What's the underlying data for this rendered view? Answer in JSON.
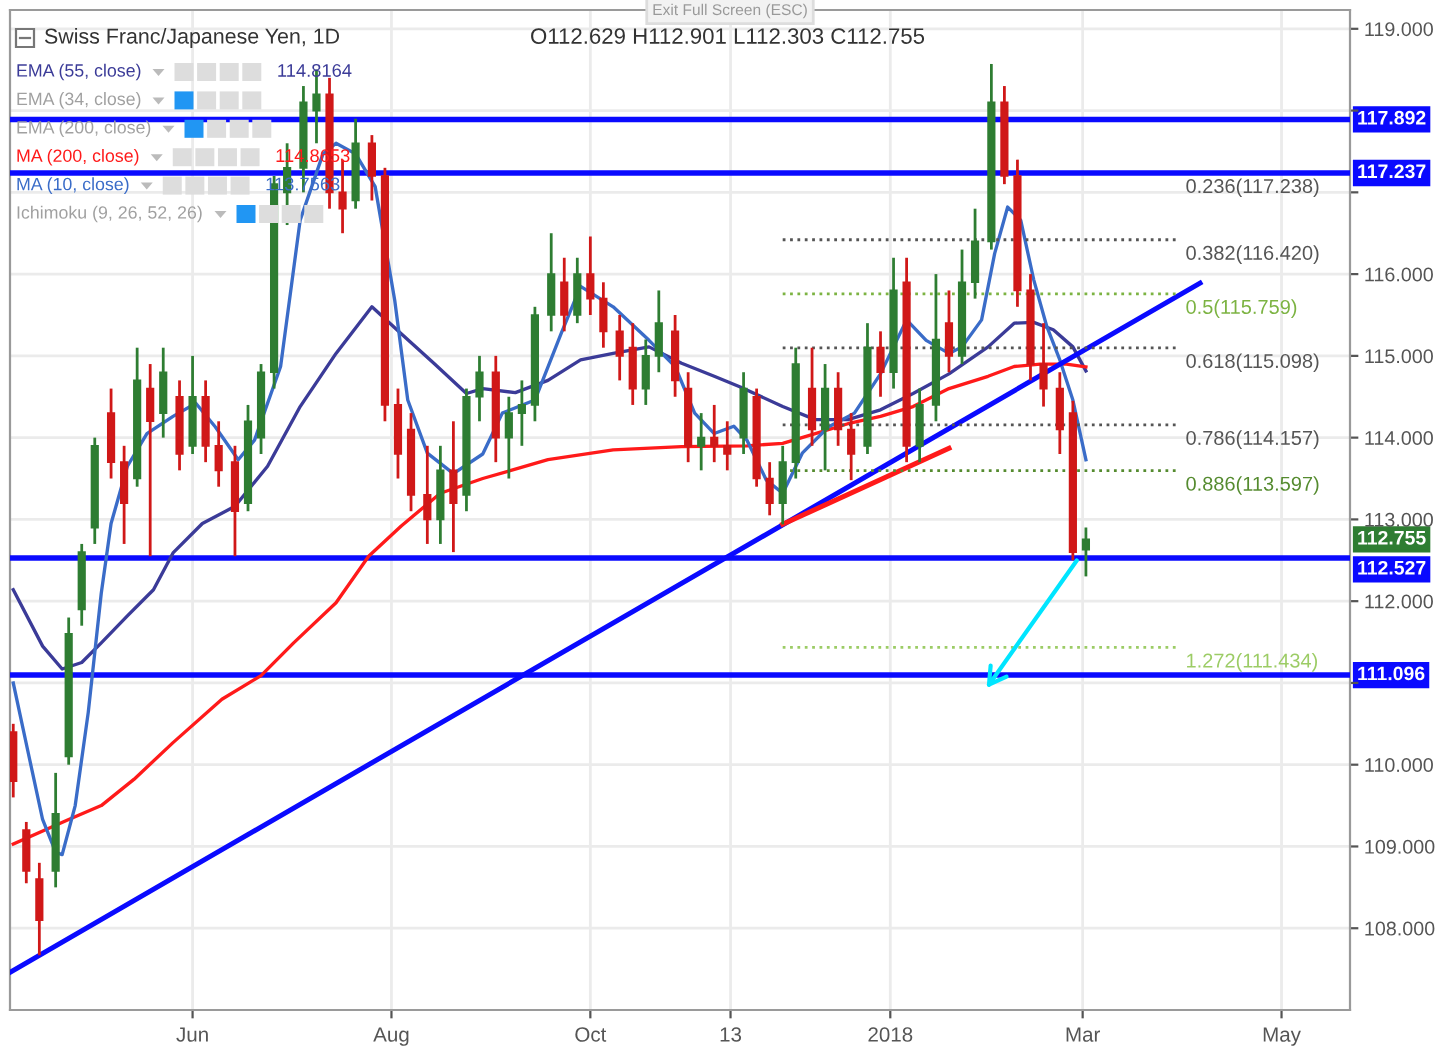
{
  "chart_data": {
    "type": "candlestick",
    "title": "Swiss Franc/Japanese Yen, 1D",
    "x": [
      "2017-04-07",
      "2017-04-11",
      "2017-04-15",
      "2017-04-20",
      "2017-04-24",
      "2017-04-28",
      "2017-05-02",
      "2017-05-07",
      "2017-05-11",
      "2017-05-15",
      "2017-05-19",
      "2017-05-23",
      "2017-05-28",
      "2017-06-01",
      "2017-06-05",
      "2017-06-09",
      "2017-06-14",
      "2017-06-18",
      "2017-06-22",
      "2017-06-26",
      "2017-06-30",
      "2017-07-05",
      "2017-07-09",
      "2017-07-13",
      "2017-07-17",
      "2017-07-21",
      "2017-07-26",
      "2017-07-30",
      "2017-08-03",
      "2017-08-07",
      "2017-08-12",
      "2017-08-16",
      "2017-08-20",
      "2017-08-24",
      "2017-08-28",
      "2017-09-02",
      "2017-09-06",
      "2017-09-10",
      "2017-09-14",
      "2017-09-19",
      "2017-09-23",
      "2017-09-27",
      "2017-10-01",
      "2017-10-05",
      "2017-10-10",
      "2017-10-14",
      "2017-10-18",
      "2017-10-22",
      "2017-10-27",
      "2017-10-31",
      "2017-11-04",
      "2017-11-08",
      "2017-11-12",
      "2017-11-17",
      "2017-11-21",
      "2017-11-25",
      "2017-11-29",
      "2017-12-03",
      "2017-12-08",
      "2017-12-12",
      "2017-12-16",
      "2017-12-20",
      "2017-12-25",
      "2017-12-29",
      "2018-01-02",
      "2018-01-06",
      "2018-01-10",
      "2018-01-15",
      "2018-01-19",
      "2018-01-23",
      "2018-01-27",
      "2018-02-01",
      "2018-02-05",
      "2018-02-09",
      "2018-02-13",
      "2018-02-17",
      "2018-02-22",
      "2018-02-26",
      "2018-03-02"
    ],
    "ohlc": [
      [
        110.4,
        110.5,
        109.6,
        109.8
      ],
      [
        109.2,
        109.3,
        108.55,
        108.7
      ],
      [
        108.6,
        108.8,
        107.67,
        108.1
      ],
      [
        108.7,
        109.9,
        108.5,
        109.4
      ],
      [
        110.1,
        111.8,
        110.0,
        111.6
      ],
      [
        111.9,
        112.7,
        111.7,
        112.6
      ],
      [
        112.9,
        114.0,
        112.7,
        113.9
      ],
      [
        114.3,
        114.6,
        113.5,
        113.7
      ],
      [
        113.7,
        113.9,
        112.7,
        113.2
      ],
      [
        113.5,
        115.1,
        113.4,
        114.7
      ],
      [
        114.6,
        114.9,
        112.55,
        114.2
      ],
      [
        114.3,
        115.1,
        114.0,
        114.8
      ],
      [
        114.5,
        114.7,
        113.6,
        113.8
      ],
      [
        113.9,
        115.0,
        113.8,
        114.5
      ],
      [
        114.5,
        114.7,
        113.7,
        113.9
      ],
      [
        113.9,
        114.2,
        113.4,
        113.6
      ],
      [
        113.7,
        113.9,
        112.55,
        113.1
      ],
      [
        113.2,
        114.4,
        113.1,
        114.2
      ],
      [
        114.0,
        114.9,
        113.8,
        114.8
      ],
      [
        114.8,
        117.2,
        114.6,
        117.1
      ],
      [
        117.0,
        117.6,
        116.6,
        117.3
      ],
      [
        117.3,
        118.3,
        117.0,
        118.1
      ],
      [
        118.0,
        118.5,
        117.6,
        118.2
      ],
      [
        118.2,
        118.4,
        116.8,
        117.0
      ],
      [
        117.0,
        117.4,
        116.5,
        116.8
      ],
      [
        116.9,
        117.9,
        116.8,
        117.6
      ],
      [
        117.6,
        117.7,
        116.9,
        117.2
      ],
      [
        117.2,
        117.3,
        114.2,
        114.4
      ],
      [
        114.4,
        114.6,
        113.5,
        113.8
      ],
      [
        114.1,
        114.3,
        113.1,
        113.3
      ],
      [
        113.3,
        113.9,
        112.7,
        113.0
      ],
      [
        113.0,
        113.9,
        112.7,
        113.6
      ],
      [
        113.6,
        114.2,
        112.6,
        113.2
      ],
      [
        113.3,
        114.6,
        113.1,
        114.5
      ],
      [
        114.5,
        115.0,
        114.2,
        114.8
      ],
      [
        114.8,
        115.0,
        113.7,
        114.0
      ],
      [
        114.0,
        114.5,
        113.5,
        114.3
      ],
      [
        114.3,
        114.7,
        113.9,
        114.4
      ],
      [
        114.4,
        115.6,
        114.2,
        115.5
      ],
      [
        115.5,
        116.5,
        115.3,
        116.0
      ],
      [
        115.9,
        116.2,
        115.3,
        115.5
      ],
      [
        115.5,
        116.2,
        115.4,
        116.0
      ],
      [
        116.0,
        116.46,
        115.5,
        115.7
      ],
      [
        115.7,
        115.9,
        115.1,
        115.3
      ],
      [
        115.3,
        115.5,
        114.7,
        115.0
      ],
      [
        115.1,
        115.4,
        114.4,
        114.6
      ],
      [
        114.6,
        115.2,
        114.4,
        115.0
      ],
      [
        115.0,
        115.8,
        114.8,
        115.4
      ],
      [
        115.3,
        115.5,
        114.5,
        114.7
      ],
      [
        114.6,
        114.8,
        113.7,
        113.9
      ],
      [
        113.9,
        114.3,
        113.6,
        114.0
      ],
      [
        114.0,
        114.4,
        113.7,
        113.9
      ],
      [
        113.9,
        114.2,
        113.6,
        113.8
      ],
      [
        114.0,
        114.8,
        113.8,
        114.6
      ],
      [
        114.5,
        114.6,
        113.4,
        113.5
      ],
      [
        113.5,
        113.7,
        113.05,
        113.2
      ],
      [
        113.2,
        113.9,
        112.94,
        113.7
      ],
      [
        113.7,
        115.1,
        113.5,
        114.9
      ],
      [
        114.6,
        115.1,
        113.9,
        114.1
      ],
      [
        114.1,
        114.9,
        113.6,
        114.6
      ],
      [
        114.6,
        114.8,
        113.9,
        114.1
      ],
      [
        114.1,
        114.3,
        113.48,
        113.8
      ],
      [
        113.9,
        115.4,
        113.8,
        115.1
      ],
      [
        115.1,
        115.3,
        114.5,
        114.8
      ],
      [
        114.8,
        116.2,
        114.6,
        115.8
      ],
      [
        115.9,
        116.2,
        113.7,
        113.9
      ],
      [
        113.9,
        114.6,
        113.7,
        114.4
      ],
      [
        114.4,
        116.0,
        114.2,
        115.2
      ],
      [
        115.4,
        115.8,
        114.8,
        115.0
      ],
      [
        115.0,
        116.3,
        114.9,
        115.9
      ],
      [
        115.9,
        116.8,
        115.7,
        116.4
      ],
      [
        116.4,
        118.57,
        116.3,
        118.1
      ],
      [
        118.1,
        118.3,
        117.1,
        117.2
      ],
      [
        117.2,
        117.4,
        115.6,
        115.8
      ],
      [
        115.8,
        116.0,
        114.7,
        114.9
      ],
      [
        114.9,
        115.4,
        114.38,
        114.6
      ],
      [
        114.6,
        114.8,
        113.8,
        114.1
      ],
      [
        114.3,
        114.45,
        112.5,
        112.6
      ],
      [
        112.629,
        112.901,
        112.303,
        112.755
      ]
    ],
    "colors": [
      "#d01818",
      "#d01818",
      "#d01818",
      "#2e7d32",
      "#2e7d32",
      "#2e7d32",
      "#2e7d32",
      "#d01818",
      "#d01818",
      "#2e7d32",
      "#d01818",
      "#2e7d32",
      "#d01818",
      "#2e7d32",
      "#d01818",
      "#d01818",
      "#d01818",
      "#2e7d32",
      "#2e7d32",
      "#2e7d32",
      "#2e7d32",
      "#2e7d32",
      "#2e7d32",
      "#d01818",
      "#d01818",
      "#2e7d32",
      "#d01818",
      "#d01818",
      "#d01818",
      "#d01818",
      "#d01818",
      "#2e7d32",
      "#d01818",
      "#2e7d32",
      "#2e7d32",
      "#d01818",
      "#2e7d32",
      "#2e7d32",
      "#2e7d32",
      "#2e7d32",
      "#d01818",
      "#2e7d32",
      "#d01818",
      "#d01818",
      "#d01818",
      "#d01818",
      "#2e7d32",
      "#2e7d32",
      "#d01818",
      "#d01818",
      "#2e7d32",
      "#d01818",
      "#d01818",
      "#2e7d32",
      "#d01818",
      "#d01818",
      "#2e7d32",
      "#2e7d32",
      "#d01818",
      "#2e7d32",
      "#d01818",
      "#d01818",
      "#2e7d32",
      "#d01818",
      "#2e7d32",
      "#d01818",
      "#2e7d32",
      "#2e7d32",
      "#d01818",
      "#2e7d32",
      "#2e7d32",
      "#2e7d32",
      "#d01818",
      "#d01818",
      "#d01818",
      "#d01818",
      "#d01818",
      "#d01818",
      "#2e7d32"
    ],
    "series": [
      {
        "name": "EMA (55, close)",
        "type": "line",
        "color": "#3b3b98",
        "x": [
          "2017-04-07",
          "2017-04-16",
          "2017-04-22",
          "2017-04-28",
          "2017-05-04",
          "2017-05-12",
          "2017-05-20",
          "2017-05-26",
          "2017-06-04",
          "2017-06-14",
          "2017-06-24",
          "2017-07-04",
          "2017-07-15",
          "2017-07-26",
          "2017-08-04",
          "2017-08-14",
          "2017-08-24",
          "2017-08-29",
          "2017-09-08",
          "2017-09-18",
          "2017-09-28",
          "2017-10-08",
          "2017-10-19",
          "2017-10-29",
          "2017-11-08",
          "2017-11-16",
          "2017-11-29",
          "2017-12-09",
          "2017-12-19",
          "2017-12-29",
          "2018-01-08",
          "2018-01-19",
          "2018-01-31",
          "2018-02-08",
          "2018-02-14",
          "2018-02-20",
          "2018-02-26",
          "2018-03-02"
        ],
        "values": [
          112.14,
          111.45,
          111.17,
          111.25,
          111.49,
          111.82,
          112.14,
          112.59,
          112.95,
          113.16,
          113.65,
          114.38,
          115.03,
          115.6,
          115.27,
          114.91,
          114.54,
          114.6,
          114.55,
          114.7,
          114.95,
          115.03,
          115.11,
          114.91,
          114.75,
          114.62,
          114.38,
          114.22,
          114.22,
          114.34,
          114.54,
          114.78,
          115.11,
          115.4,
          115.41,
          115.32,
          115.11,
          114.8164
        ]
      },
      {
        "name": "MA (200, close)",
        "type": "line",
        "color": "#ff1a1a",
        "x": [
          "2017-04-07",
          "2017-04-24",
          "2017-05-04",
          "2017-05-14",
          "2017-05-26",
          "2017-06-10",
          "2017-06-22",
          "2017-07-02",
          "2017-07-15",
          "2017-07-25",
          "2017-08-04",
          "2017-08-16",
          "2017-08-29",
          "2017-09-18",
          "2017-10-08",
          "2017-10-29",
          "2017-11-18",
          "2017-11-29",
          "2017-12-09",
          "2017-12-19",
          "2017-12-29",
          "2018-01-08",
          "2018-01-19",
          "2018-01-31",
          "2018-02-08",
          "2018-02-16",
          "2018-02-24",
          "2018-03-02"
        ],
        "values": [
          109.03,
          109.33,
          109.5,
          109.82,
          110.27,
          110.8,
          111.09,
          111.49,
          111.98,
          112.55,
          112.92,
          113.32,
          113.5,
          113.73,
          113.85,
          113.89,
          113.9,
          113.93,
          114.05,
          114.17,
          114.26,
          114.38,
          114.6,
          114.75,
          114.87,
          114.9,
          114.9,
          114.8653
        ]
      },
      {
        "name": "MA (10, close)",
        "type": "line",
        "color": "#3a6cc8",
        "x": [
          "2017-04-07",
          "2017-04-12",
          "2017-04-16",
          "2017-04-20",
          "2017-04-22",
          "2017-04-26",
          "2017-04-30",
          "2017-05-04",
          "2017-05-07",
          "2017-05-12",
          "2017-05-18",
          "2017-05-26",
          "2017-06-02",
          "2017-06-08",
          "2017-06-15",
          "2017-06-20",
          "2017-06-28",
          "2017-07-04",
          "2017-07-11",
          "2017-07-15",
          "2017-07-21",
          "2017-07-27",
          "2017-08-02",
          "2017-08-06",
          "2017-08-12",
          "2017-08-20",
          "2017-08-29",
          "2017-09-04",
          "2017-09-14",
          "2017-09-22",
          "2017-09-28",
          "2017-10-08",
          "2017-10-19",
          "2017-10-27",
          "2017-11-02",
          "2017-11-08",
          "2017-11-14",
          "2017-11-18",
          "2017-11-24",
          "2017-11-29",
          "2017-12-05",
          "2017-12-13",
          "2017-12-21",
          "2017-12-29",
          "2018-01-06",
          "2018-01-12",
          "2018-01-19",
          "2018-01-23",
          "2018-01-29",
          "2018-02-02",
          "2018-02-06",
          "2018-02-10",
          "2018-02-14",
          "2018-02-18",
          "2018-02-22",
          "2018-02-26",
          "2018-03-02"
        ],
        "values": [
          111.0,
          110.07,
          109.33,
          108.93,
          108.9,
          109.5,
          110.64,
          112.1,
          112.95,
          113.65,
          114.05,
          114.26,
          114.42,
          114.13,
          113.73,
          113.97,
          114.87,
          116.66,
          117.47,
          117.6,
          117.47,
          117.07,
          115.68,
          114.46,
          113.81,
          113.56,
          113.8,
          114.3,
          114.46,
          115.27,
          115.85,
          115.6,
          115.19,
          114.87,
          114.3,
          114.05,
          114.14,
          113.97,
          113.48,
          113.32,
          113.81,
          114.13,
          114.3,
          114.78,
          115.44,
          115.19,
          115.03,
          115.11,
          115.44,
          116.25,
          116.82,
          116.66,
          115.93,
          115.36,
          114.95,
          114.46,
          113.73
        ]
      },
      {
        "type": "line",
        "color": "#0a0aff",
        "x": [
          "2017-04-06",
          "2018-04-06"
        ],
        "values": [
          107.46,
          115.89
        ]
      },
      {
        "type": "line",
        "color": "#ff1a1a",
        "x": [
          "2017-11-29",
          "2018-01-19"
        ],
        "values": [
          112.94,
          113.87
        ]
      },
      {
        "type": "line",
        "color": "#555555",
        "line_style": "dotted",
        "x": [
          "2017-11-29",
          "2018-03-30"
        ],
        "values": [
          116.42,
          116.42
        ]
      },
      {
        "type": "line",
        "color": "#7cb342",
        "line_style": "dotted",
        "x": [
          "2017-11-29",
          "2018-03-30"
        ],
        "values": [
          115.759,
          115.759
        ]
      },
      {
        "type": "line",
        "color": "#555555",
        "line_style": "dotted",
        "x": [
          "2017-11-29",
          "2018-03-30"
        ],
        "values": [
          115.098,
          115.098
        ]
      },
      {
        "type": "line",
        "color": "#555555",
        "line_style": "dotted",
        "x": [
          "2017-11-29",
          "2018-03-30"
        ],
        "values": [
          114.157,
          114.157
        ]
      },
      {
        "type": "line",
        "color": "#558b2f",
        "line_style": "dotted",
        "x": [
          "2017-11-29",
          "2018-03-30"
        ],
        "values": [
          113.597,
          113.597
        ]
      },
      {
        "type": "line",
        "color": "#9ccc65",
        "line_style": "dotted",
        "x": [
          "2017-11-29",
          "2018-03-30"
        ],
        "values": [
          111.434,
          111.434
        ]
      }
    ],
    "ref_lines": [
      {
        "axis": "y",
        "value": 117.892,
        "label": "117.892",
        "color": "#0a0aff"
      },
      {
        "axis": "y",
        "value": 117.237,
        "label": "117.237",
        "color": "#0a0aff"
      },
      {
        "axis": "y",
        "value": 112.527,
        "label": "112.527",
        "color": "#0a0aff"
      },
      {
        "axis": "y",
        "value": 111.096,
        "label": "111.096",
        "color": "#0a0aff"
      }
    ],
    "annotations": [
      "O112.629 H112.901 L112.303 C112.755",
      "114.8164",
      "EMA (34, close)",
      "EMA (200, close)",
      "114.8653",
      "113.7563",
      "Ichimoku (9, 26, 52, 26)",
      "Exit Full Screen (ESC)",
      {
        "text": "0.236(117.238)",
        "x": "2018-03-30",
        "y": 117.238
      },
      "112.755",
      {
        "text": "0.382(116.420)",
        "x": "2018-03-30",
        "y": 116.42
      },
      {
        "text": "0.5(115.759)",
        "x": "2018-03-30",
        "y": 115.759
      },
      {
        "text": "0.618(115.098)",
        "x": "2018-03-30",
        "y": 115.098
      },
      {
        "text": "0.786(114.157)",
        "x": "2018-03-30",
        "y": 114.157
      },
      {
        "text": "0.886(113.597)",
        "x": "2018-03-30",
        "y": 113.597
      },
      {
        "text": "1.272(111.434)",
        "x": "2018-03-30",
        "y": 111.434
      }
    ],
    "xlim": [
      "2017-04-06",
      "2018-05-22"
    ],
    "ylim": [
      107.0,
      119.23
    ],
    "xticks": [
      {
        "value": "2017-06-01",
        "label": "Jun"
      },
      {
        "value": "2017-08-01",
        "label": "Aug"
      },
      {
        "value": "2017-10-01",
        "label": "Oct"
      },
      {
        "value": "2017-11-13",
        "label": "13"
      },
      {
        "value": "2018-01-01",
        "label": "2018"
      },
      {
        "value": "2018-03-01",
        "label": "Mar"
      },
      {
        "value": "2018-05-01",
        "label": "May"
      }
    ],
    "yticks": [
      {
        "value": 108,
        "label": "108.000"
      },
      {
        "value": 109,
        "label": "109.000"
      },
      {
        "value": 110,
        "label": "110.000"
      },
      {
        "value": 111,
        "label": null
      },
      {
        "value": 112,
        "label": "112.000"
      },
      {
        "value": 113,
        "label": "113.000"
      },
      {
        "value": 114,
        "label": "114.000"
      },
      {
        "value": 115,
        "label": "115.000"
      },
      {
        "value": 116,
        "label": "116.000"
      },
      {
        "value": 117,
        "label": null
      },
      {
        "value": 118,
        "label": null
      },
      {
        "value": 119,
        "label": "119.000"
      }
    ],
    "grid": true,
    "legend": "top left"
  }
}
